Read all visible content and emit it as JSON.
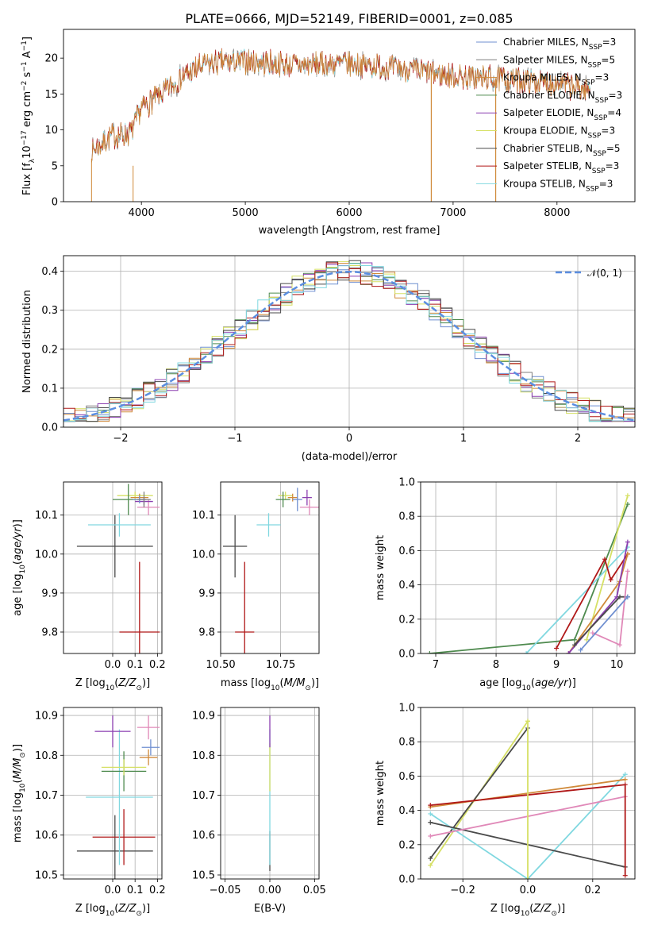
{
  "title": "PLATE=0666, MJD=52149, FIBERID=0001, z=0.085",
  "colors": {
    "Chabrier MILES": "#6f8fd0",
    "Salpeter MILES": "#7f7f7f",
    "Kroupa MILES": "#d08a3a",
    "Chabrier ELODIE": "#4e8a4e",
    "Salpeter ELODIE": "#8b3fb0",
    "Kroupa ELODIE": "#d6e065",
    "Chabrier STELIB": "#4a4a4a",
    "Salpeter STELIB": "#b01818",
    "Kroupa STELIB": "#80d8e0",
    "extra": "#e088b8",
    "normal": "#5b8ee0"
  },
  "chart_data": [
    {
      "type": "line",
      "xlabel": "wavelength [Angstrom, rest frame]",
      "ylabel": "Flux [f_λ 10^-17 erg cm^-2 s^-1 A^-1]",
      "xlim": [
        3250,
        8750
      ],
      "ylim": [
        0,
        24
      ],
      "xticks": [
        "4000",
        "5000",
        "6000",
        "7000",
        "8000"
      ],
      "yticks": [
        "0",
        "5",
        "10",
        "15",
        "20"
      ],
      "legend": "top-right",
      "legend_labels": [
        {
          "model": "Chabrier MILES",
          "n": "3"
        },
        {
          "model": "Salpeter MILES",
          "n": "5"
        },
        {
          "model": "Kroupa MILES",
          "n": "3"
        },
        {
          "model": "Chabrier ELODIE",
          "n": "3"
        },
        {
          "model": "Salpeter ELODIE",
          "n": "4"
        },
        {
          "model": "Kroupa ELODIE",
          "n": "3"
        },
        {
          "model": "Chabrier STELIB",
          "n": "5"
        },
        {
          "model": "Salpeter STELIB",
          "n": "3"
        },
        {
          "model": "Kroupa STELIB",
          "n": "3"
        }
      ],
      "continuum": [
        [
          3520,
          7
        ],
        [
          3700,
          9
        ],
        [
          3900,
          9.5
        ],
        [
          4000,
          13
        ],
        [
          4200,
          15
        ],
        [
          4400,
          17.5
        ],
        [
          4600,
          19
        ],
        [
          4800,
          19.5
        ],
        [
          5000,
          19.5
        ],
        [
          5500,
          19
        ],
        [
          6000,
          19.2
        ],
        [
          6500,
          18.5
        ],
        [
          7000,
          17.5
        ],
        [
          7500,
          17
        ],
        [
          8000,
          16.5
        ],
        [
          8300,
          15.5
        ]
      ]
    },
    {
      "type": "histogram",
      "xlabel": "(data-model)/error",
      "ylabel": "Normed distribution",
      "xlim": [
        -2.5,
        2.5
      ],
      "ylim": [
        0,
        0.44
      ],
      "xticks": [
        "−2",
        "−1",
        "0",
        "1",
        "2"
      ],
      "yticks": [
        "0.0",
        "0.1",
        "0.2",
        "0.3",
        "0.4"
      ],
      "legend_label": "𝒩(0, 1)",
      "bin_width": 0.1
    },
    {
      "type": "scatter",
      "xlabel": "Z [log10(Z/Z⊙)]",
      "ylabel": "age [log10(age/yr)]",
      "xlim": [
        -0.22,
        0.22
      ],
      "ylim": [
        9.745,
        10.185
      ],
      "xticks": [
        "0.0",
        "0.1",
        "0.2"
      ],
      "yticks": [
        "9.8",
        "9.9",
        "10.0",
        "10.1"
      ],
      "points": [
        {
          "c": "Chabrier STELIB",
          "x": 0.01,
          "y": 10.02,
          "xe": 0.17,
          "ye": 0.08
        },
        {
          "c": "Salpeter STELIB",
          "x": 0.12,
          "y": 9.8,
          "xe": 0.09,
          "ye": 0.18
        },
        {
          "c": "Kroupa STELIB",
          "x": 0.03,
          "y": 10.075,
          "xe": 0.14,
          "ye": 0.03
        },
        {
          "c": "Kroupa ELODIE",
          "x": 0.1,
          "y": 10.15,
          "xe": 0.08,
          "ye": 0.01
        },
        {
          "c": "Chabrier ELODIE",
          "x": 0.07,
          "y": 10.14,
          "xe": 0.07,
          "ye": 0.04
        },
        {
          "c": "Kroupa MILES",
          "x": 0.12,
          "y": 10.145,
          "xe": 0.04,
          "ye": 0.01
        },
        {
          "c": "extra",
          "x": 0.16,
          "y": 10.12,
          "xe": 0.05,
          "ye": 0.02
        },
        {
          "c": "Salpeter ELODIE",
          "x": 0.14,
          "y": 10.135,
          "xe": 0.04,
          "ye": 0.01
        },
        {
          "c": "Chabrier MILES",
          "x": 0.12,
          "y": 10.14,
          "xe": 0.03,
          "ye": 0.01
        },
        {
          "c": "Salpeter MILES",
          "x": 0.14,
          "y": 10.14,
          "xe": 0.03,
          "ye": 0.02
        }
      ]
    },
    {
      "type": "scatter",
      "xlabel": "mass [log10(M/M⊙)]",
      "ylabel": "",
      "xlim": [
        10.5,
        10.91
      ],
      "ylim": [
        9.745,
        10.185
      ],
      "xticks": [
        "10.50",
        "10.75"
      ],
      "yticks": [
        "9.8",
        "9.9",
        "10.0",
        "10.1"
      ],
      "points": [
        {
          "c": "Chabrier STELIB",
          "x": 10.56,
          "y": 10.02,
          "xe": 0.05,
          "ye": 0.08
        },
        {
          "c": "Salpeter STELIB",
          "x": 10.6,
          "y": 9.8,
          "xe": 0.04,
          "ye": 0.18
        },
        {
          "c": "Kroupa STELIB",
          "x": 10.7,
          "y": 10.075,
          "xe": 0.05,
          "ye": 0.03
        },
        {
          "c": "Kroupa ELODIE",
          "x": 10.77,
          "y": 10.15,
          "xe": 0.03,
          "ye": 0.01
        },
        {
          "c": "Chabrier ELODIE",
          "x": 10.76,
          "y": 10.14,
          "xe": 0.03,
          "ye": 0.02
        },
        {
          "c": "Kroupa MILES",
          "x": 10.8,
          "y": 10.145,
          "xe": 0.02,
          "ye": 0.01
        },
        {
          "c": "Salpeter ELODIE",
          "x": 10.86,
          "y": 10.145,
          "xe": 0.02,
          "ye": 0.02
        },
        {
          "c": "extra",
          "x": 10.87,
          "y": 10.12,
          "xe": 0.04,
          "ye": 0.02
        },
        {
          "c": "Chabrier MILES",
          "x": 10.82,
          "y": 10.14,
          "xe": 0.02,
          "ye": 0.03
        }
      ]
    },
    {
      "type": "line",
      "xlabel": "age [log10(age/yr)]",
      "ylabel": "mass weight",
      "xlim": [
        6.75,
        10.3
      ],
      "ylim": [
        0,
        1
      ],
      "xticks": [
        "7",
        "8",
        "9",
        "10"
      ],
      "yticks": [
        "0.0",
        "0.2",
        "0.4",
        "0.6",
        "0.8",
        "1.0"
      ],
      "series": [
        {
          "c": "Chabrier ELODIE",
          "x": [
            6.9,
            9.3,
            10.18
          ],
          "y": [
            0.0,
            0.08,
            0.87
          ]
        },
        {
          "c": "Kroupa ELODIE",
          "x": [
            9.5,
            10.18
          ],
          "y": [
            0.08,
            0.92
          ]
        },
        {
          "c": "Kroupa STELIB",
          "x": [
            8.5,
            10.18
          ],
          "y": [
            0.0,
            0.62
          ]
        },
        {
          "c": "Salpeter STELIB",
          "x": [
            9.0,
            9.8,
            9.9,
            10.18
          ],
          "y": [
            0.03,
            0.55,
            0.43,
            0.58
          ]
        },
        {
          "c": "Kroupa MILES",
          "x": [
            9.2,
            10.05,
            10.18
          ],
          "y": [
            0.0,
            0.42,
            0.58
          ]
        },
        {
          "c": "Salpeter ELODIE",
          "x": [
            9.2,
            10.0,
            10.18
          ],
          "y": [
            0.0,
            0.33,
            0.65
          ]
        },
        {
          "c": "Chabrier STELIB",
          "x": [
            9.3,
            10.05,
            10.18
          ],
          "y": [
            0.05,
            0.33,
            0.33
          ]
        },
        {
          "c": "extra",
          "x": [
            9.6,
            10.05,
            10.18
          ],
          "y": [
            0.12,
            0.05,
            0.48
          ]
        },
        {
          "c": "Chabrier MILES",
          "x": [
            9.4,
            10.18
          ],
          "y": [
            0.02,
            0.33
          ]
        }
      ]
    },
    {
      "type": "scatter",
      "xlabel": "Z [log10(Z/Z⊙)]",
      "ylabel": "mass [log10(M/M⊙)]",
      "xlim": [
        -0.22,
        0.22
      ],
      "ylim": [
        10.49,
        10.92
      ],
      "xticks": [
        "0.0",
        "0.1",
        "0.2"
      ],
      "yticks": [
        "10.5",
        "10.6",
        "10.7",
        "10.8",
        "10.9"
      ],
      "points": [
        {
          "c": "Chabrier STELIB",
          "x": 0.01,
          "y": 10.56,
          "xe": 0.17,
          "ye": 0.09
        },
        {
          "c": "Salpeter STELIB",
          "x": 0.05,
          "y": 10.595,
          "xe": 0.14,
          "ye": 0.07
        },
        {
          "c": "Kroupa STELIB",
          "x": 0.03,
          "y": 10.695,
          "xe": 0.15,
          "ye": 0.17
        },
        {
          "c": "Chabrier ELODIE",
          "x": 0.05,
          "y": 10.76,
          "xe": 0.1,
          "ye": 0.05
        },
        {
          "c": "Kroupa ELODIE",
          "x": 0.05,
          "y": 10.77,
          "xe": 0.1,
          "ye": 0.02
        },
        {
          "c": "Kroupa MILES",
          "x": 0.16,
          "y": 10.795,
          "xe": 0.04,
          "ye": 0.02
        },
        {
          "c": "Chabrier MILES",
          "x": 0.17,
          "y": 10.82,
          "xe": 0.04,
          "ye": 0.02
        },
        {
          "c": "Salpeter ELODIE",
          "x": 0.0,
          "y": 10.86,
          "xe": 0.08,
          "ye": 0.04
        },
        {
          "c": "extra",
          "x": 0.16,
          "y": 10.87,
          "xe": 0.05,
          "ye": 0.03
        }
      ]
    },
    {
      "type": "scatter",
      "xlabel": "E(B-V)",
      "ylabel": "",
      "xlim": [
        -0.055,
        0.055
      ],
      "ylim": [
        10.49,
        10.92
      ],
      "xticks": [
        "−0.05",
        "0.00",
        "0.05"
      ],
      "yticks": [
        "10.5",
        "10.6",
        "10.7",
        "10.8",
        "10.9"
      ],
      "points": [
        {
          "c": "Chabrier STELIB",
          "x": 0,
          "y": 10.56,
          "xe": 0,
          "ye": 0.05
        },
        {
          "c": "Kroupa STELIB",
          "x": 0,
          "y": 10.695,
          "xe": 0,
          "ye": 0.17
        },
        {
          "c": "Kroupa ELODIE",
          "x": 0,
          "y": 10.77,
          "xe": 0,
          "ye": 0.06
        },
        {
          "c": "Salpeter ELODIE",
          "x": 0,
          "y": 10.86,
          "xe": 0,
          "ye": 0.04
        }
      ]
    },
    {
      "type": "line",
      "xlabel": "Z [log10(Z/Z⊙)]",
      "ylabel": "mass weight",
      "xlim": [
        -0.33,
        0.33
      ],
      "ylim": [
        0,
        1
      ],
      "xticks": [
        "−0.2",
        "0.0",
        "0.2"
      ],
      "yticks": [
        "0.0",
        "0.2",
        "0.4",
        "0.6",
        "0.8",
        "1.0"
      ],
      "series": [
        {
          "c": "Kroupa ELODIE",
          "x": [
            -0.3,
            0.0
          ],
          "y": [
            0.08,
            0.92
          ]
        },
        {
          "c": "Chabrier STELIB",
          "x": [
            -0.3,
            0.0
          ],
          "y": [
            0.12,
            0.88
          ]
        },
        {
          "c": "Kroupa STELIB",
          "x": [
            -0.3,
            0.0,
            0.3
          ],
          "y": [
            0.38,
            0.0,
            0.61
          ]
        },
        {
          "c": "Chabrier STELIB",
          "x": [
            -0.3,
            0.3
          ],
          "y": [
            0.33,
            0.07
          ]
        },
        {
          "c": "extra",
          "x": [
            -0.3,
            0.3
          ],
          "y": [
            0.25,
            0.48
          ]
        },
        {
          "c": "Kroupa MILES",
          "x": [
            -0.3,
            0.3
          ],
          "y": [
            0.42,
            0.58
          ]
        },
        {
          "c": "Salpeter STELIB",
          "x": [
            -0.3,
            0.3,
            0.3
          ],
          "y": [
            0.43,
            0.55,
            0.02
          ]
        },
        {
          "c": "Kroupa ELODIE",
          "x": [
            0.0,
            0.0
          ],
          "y": [
            0.0,
            0.92
          ]
        }
      ]
    }
  ]
}
